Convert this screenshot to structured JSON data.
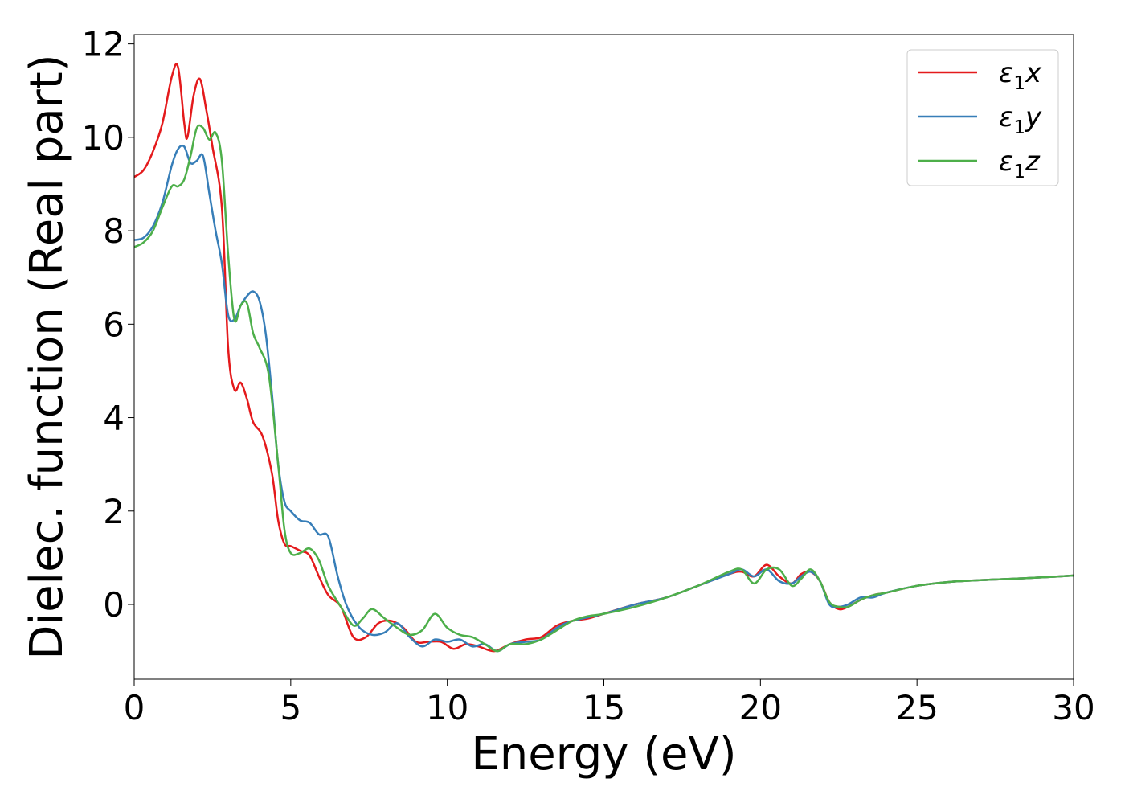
{
  "chart_data": {
    "type": "line",
    "xlabel": "Energy (eV)",
    "ylabel": "Dielec. function (Real part)",
    "xlim": [
      0,
      30
    ],
    "ylim": [
      -1.6,
      12.2
    ],
    "xticks": [
      0,
      5,
      10,
      15,
      20,
      25,
      30
    ],
    "yticks": [
      0,
      2,
      4,
      6,
      8,
      10,
      12
    ],
    "grid": false,
    "legend_position": "top-right",
    "series": [
      {
        "name": "ε1x",
        "legend_main": "ε",
        "legend_sub": "1",
        "legend_var": "x",
        "color": "#e41a1c",
        "x": [
          0,
          0.3,
          0.6,
          0.9,
          1.2,
          1.4,
          1.6,
          1.7,
          1.9,
          2.1,
          2.3,
          2.5,
          2.8,
          3.0,
          3.2,
          3.4,
          3.6,
          3.8,
          4.1,
          4.4,
          4.6,
          4.8,
          5.0,
          5.3,
          5.6,
          5.9,
          6.2,
          6.6,
          7.0,
          7.4,
          7.8,
          8.2,
          8.6,
          9.0,
          9.4,
          9.8,
          10.2,
          10.6,
          11.0,
          11.5,
          12.0,
          12.5,
          13.0,
          13.5,
          14.0,
          14.5,
          15.0,
          16.0,
          17.0,
          18.0,
          19.0,
          19.4,
          19.8,
          20.2,
          20.6,
          21.0,
          21.3,
          21.6,
          21.9,
          22.2,
          22.5,
          22.8,
          23.2,
          23.6,
          24.0,
          25.0,
          26.0,
          27.0,
          28.0,
          29.0,
          30.0
        ],
        "y": [
          9.15,
          9.3,
          9.7,
          10.3,
          11.3,
          11.5,
          10.3,
          10.0,
          10.9,
          11.25,
          10.6,
          9.8,
          8.5,
          5.5,
          4.6,
          4.75,
          4.4,
          3.9,
          3.6,
          2.8,
          1.8,
          1.3,
          1.25,
          1.15,
          1.05,
          0.6,
          0.2,
          -0.05,
          -0.7,
          -0.7,
          -0.4,
          -0.35,
          -0.5,
          -0.8,
          -0.8,
          -0.8,
          -0.95,
          -0.85,
          -0.9,
          -1.0,
          -0.85,
          -0.75,
          -0.7,
          -0.45,
          -0.35,
          -0.3,
          -0.2,
          0,
          0.15,
          0.4,
          0.65,
          0.7,
          0.6,
          0.85,
          0.6,
          0.45,
          0.65,
          0.7,
          0.5,
          0.05,
          -0.1,
          -0.05,
          0.1,
          0.2,
          0.25,
          0.4,
          0.48,
          0.52,
          0.55,
          0.58,
          0.62
        ]
      },
      {
        "name": "ε1y",
        "legend_main": "ε",
        "legend_sub": "1",
        "legend_var": "y",
        "color": "#377eb8",
        "x": [
          0,
          0.3,
          0.6,
          0.9,
          1.2,
          1.4,
          1.6,
          1.8,
          2.0,
          2.2,
          2.4,
          2.6,
          2.8,
          3.0,
          3.2,
          3.4,
          3.6,
          3.8,
          4.0,
          4.2,
          4.4,
          4.6,
          4.8,
          5.0,
          5.3,
          5.6,
          5.9,
          6.2,
          6.5,
          6.8,
          7.2,
          7.6,
          8.0,
          8.4,
          8.8,
          9.2,
          9.6,
          10.0,
          10.4,
          10.8,
          11.2,
          11.6,
          12.0,
          12.5,
          13.0,
          13.5,
          14.0,
          15.0,
          16.0,
          17.0,
          18.0,
          19.0,
          19.4,
          19.8,
          20.2,
          20.6,
          21.0,
          21.3,
          21.6,
          21.9,
          22.2,
          22.5,
          22.8,
          23.2,
          23.6,
          24.0,
          25.0,
          26.0,
          27.0,
          28.0,
          29.0,
          30.0
        ],
        "y": [
          7.8,
          7.85,
          8.1,
          8.6,
          9.4,
          9.75,
          9.8,
          9.45,
          9.5,
          9.6,
          8.8,
          8.0,
          7.3,
          6.2,
          6.1,
          6.4,
          6.6,
          6.7,
          6.5,
          5.8,
          4.5,
          3.0,
          2.2,
          2.0,
          1.8,
          1.75,
          1.5,
          1.45,
          0.6,
          -0.05,
          -0.5,
          -0.65,
          -0.6,
          -0.4,
          -0.7,
          -0.9,
          -0.75,
          -0.8,
          -0.75,
          -0.9,
          -0.85,
          -1.0,
          -0.85,
          -0.8,
          -0.75,
          -0.5,
          -0.35,
          -0.2,
          0,
          0.15,
          0.4,
          0.65,
          0.75,
          0.6,
          0.75,
          0.5,
          0.45,
          0.6,
          0.7,
          0.5,
          0.0,
          -0.05,
          0.0,
          0.15,
          0.15,
          0.25,
          0.4,
          0.48,
          0.52,
          0.55,
          0.58,
          0.62
        ]
      },
      {
        "name": "ε1z",
        "legend_main": "ε",
        "legend_sub": "1",
        "legend_var": "z",
        "color": "#4daf4a",
        "x": [
          0,
          0.3,
          0.6,
          0.9,
          1.2,
          1.4,
          1.6,
          1.8,
          2.0,
          2.2,
          2.4,
          2.6,
          2.8,
          3.0,
          3.2,
          3.4,
          3.6,
          3.8,
          4.0,
          4.3,
          4.6,
          4.8,
          5.0,
          5.3,
          5.6,
          5.9,
          6.2,
          6.6,
          7.0,
          7.3,
          7.6,
          8.0,
          8.4,
          8.8,
          9.2,
          9.6,
          10.0,
          10.4,
          10.8,
          11.2,
          11.6,
          12.0,
          12.5,
          13.0,
          13.5,
          14.0,
          14.5,
          15.0,
          16.0,
          17.0,
          18.0,
          19.0,
          19.4,
          19.8,
          20.2,
          20.6,
          21.0,
          21.3,
          21.6,
          21.9,
          22.2,
          22.5,
          22.8,
          23.2,
          23.6,
          24.0,
          25.0,
          26.0,
          27.0,
          28.0,
          29.0,
          30.0
        ],
        "y": [
          7.65,
          7.75,
          8.0,
          8.5,
          8.95,
          8.95,
          9.1,
          9.6,
          10.2,
          10.2,
          9.95,
          10.1,
          9.5,
          7.5,
          6.1,
          6.4,
          6.45,
          5.8,
          5.5,
          4.9,
          3.0,
          1.6,
          1.1,
          1.1,
          1.2,
          0.95,
          0.4,
          -0.05,
          -0.45,
          -0.3,
          -0.1,
          -0.3,
          -0.5,
          -0.65,
          -0.55,
          -0.2,
          -0.5,
          -0.65,
          -0.7,
          -0.85,
          -1.0,
          -0.85,
          -0.85,
          -0.75,
          -0.55,
          -0.35,
          -0.25,
          -0.2,
          -0.05,
          0.15,
          0.4,
          0.7,
          0.75,
          0.45,
          0.75,
          0.75,
          0.4,
          0.55,
          0.75,
          0.5,
          0.05,
          -0.05,
          -0.05,
          0.1,
          0.2,
          0.25,
          0.4,
          0.48,
          0.52,
          0.55,
          0.58,
          0.62
        ]
      }
    ]
  }
}
